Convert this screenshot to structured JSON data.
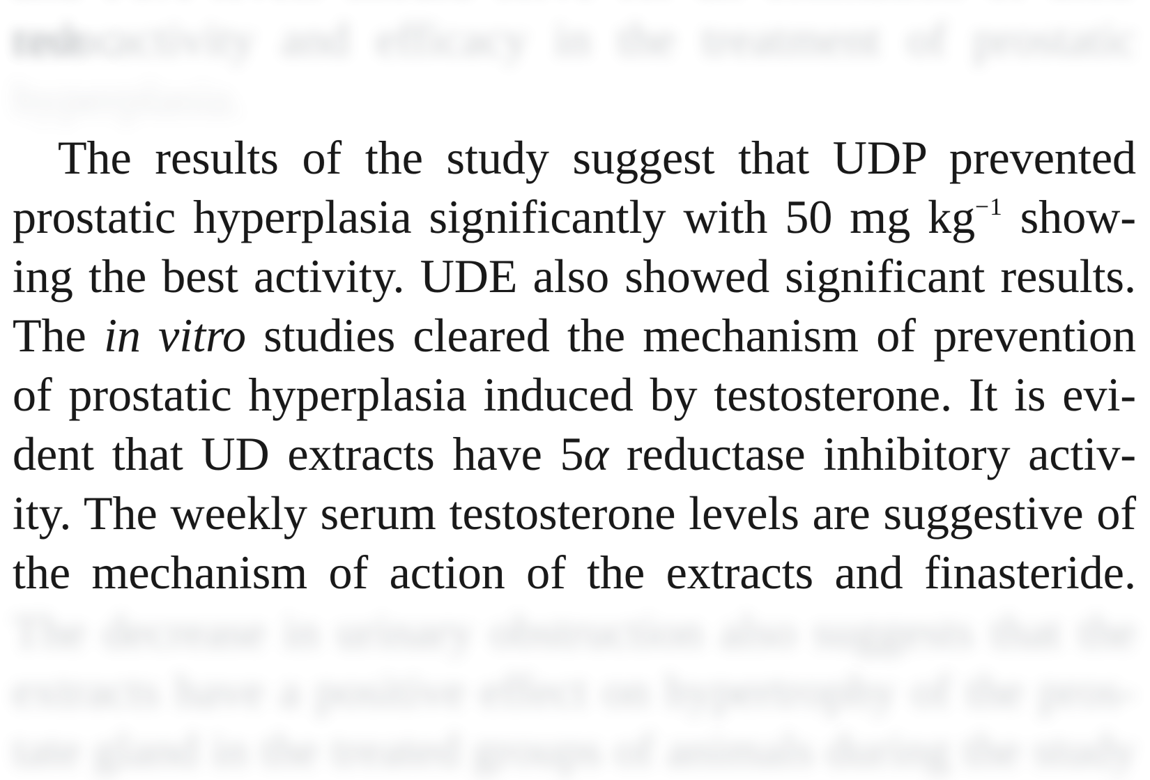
{
  "document": {
    "kind": "journal article text block",
    "text_color": "#191919",
    "background": "#ffffff"
  },
  "previous_paragraph_blurred": {
    "note": "illegible blurred text, visual approximation only",
    "lines": [
      "and PSA levels should serve for an estimation of their reduc",
      "tase activity and efficacy in the treatment of prostatic",
      "hyperplasia."
    ]
  },
  "paragraph": {
    "lines": [
      {
        "pre": "The results of the study suggest that UDP prevented"
      },
      {
        "pre": "prostatic hyperplasia significantly with 50 mg kg",
        "sup": "−1",
        "post": " show-"
      },
      {
        "pre": "ing the best activity. UDE also showed significant results."
      },
      {
        "pre": "The ",
        "italic": "in vitro",
        "post": " studies cleared the mechanism of prevention"
      },
      {
        "pre": "of prostatic hyperplasia induced by testosterone. It is evi-"
      },
      {
        "pre": "dent that UD extracts have 5",
        "italic": "α",
        "post": " reductase inhibitory activ-"
      },
      {
        "pre": "ity. The weekly serum testosterone levels are suggestive of"
      },
      {
        "pre": "the mechanism of action of the extracts and finasteride."
      }
    ]
  },
  "next_paragraph_blurred": {
    "note": "illegible blurred text, visual approximation only",
    "lines": [
      "The decrease in urinary obstruction also suggests that the",
      "extracts have a positive effect on hypertrophy of the pros-",
      "tate gland in the treated groups of animals during the study"
    ]
  }
}
